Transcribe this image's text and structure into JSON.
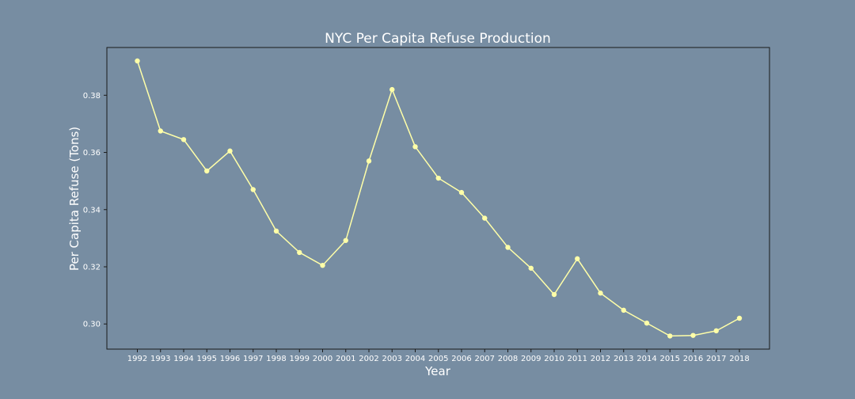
{
  "chart_data": {
    "type": "line",
    "title": "NYC Per Capita Refuse Production",
    "xlabel": "Year",
    "ylabel": "Per Capita Refuse (Tons)",
    "x": [
      "1992",
      "1993",
      "1994",
      "1995",
      "1996",
      "1997",
      "1998",
      "1999",
      "2000",
      "2001",
      "2002",
      "2003",
      "2004",
      "2005",
      "2006",
      "2007",
      "2008",
      "2009",
      "2010",
      "2011",
      "2012",
      "2013",
      "2014",
      "2015",
      "2016",
      "2017",
      "2018"
    ],
    "series": [
      {
        "values": [
          0.392,
          0.3675,
          0.3645,
          0.3535,
          0.3605,
          0.347,
          0.3325,
          0.325,
          0.3205,
          0.3292,
          0.357,
          0.382,
          0.362,
          0.351,
          0.346,
          0.337,
          0.3268,
          0.3195,
          0.3103,
          0.3228,
          0.3108,
          0.3048,
          0.3003,
          0.2958,
          0.296,
          0.2976,
          0.302
        ]
      }
    ],
    "yticks": [
      "0.30",
      "0.32",
      "0.34",
      "0.36",
      "0.38"
    ],
    "ylim": [
      0.2912,
      0.3967
    ],
    "grid": false,
    "colors": {
      "background": "#778da2",
      "line": "#ffffa8"
    }
  }
}
